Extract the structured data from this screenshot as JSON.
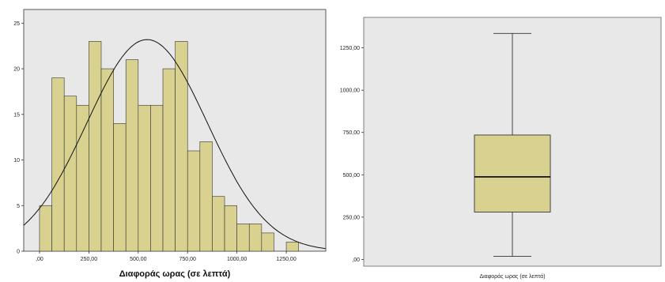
{
  "chart_data": [
    {
      "type": "bar",
      "subtype": "histogram",
      "xlabel": "Διαφοράς ωρας (σε λεπτά)",
      "x_tick_labels": [
        ",00",
        "250,00",
        "500,00",
        "750,00",
        "1000,00",
        "1250,00"
      ],
      "x_ticks": [
        0,
        250,
        500,
        750,
        1000,
        1250
      ],
      "y_tick_labels": [
        "0",
        "5",
        "10",
        "15",
        "20",
        "25"
      ],
      "y_ticks": [
        0,
        5,
        10,
        15,
        20,
        25
      ],
      "xlim": [
        -80,
        1450
      ],
      "ylim": [
        0,
        26.5
      ],
      "bin_width": 62.5,
      "bin_start": 0,
      "values": [
        5,
        19,
        17,
        16,
        23,
        20,
        14,
        21,
        16,
        16,
        20,
        23,
        11,
        12,
        6,
        5,
        3,
        3,
        2,
        0,
        1
      ],
      "normal_curve": {
        "mean": 545,
        "sd": 305,
        "peak": 23.2
      },
      "bar_color": "#d9d18f",
      "plot_background": "#e8e8e8"
    },
    {
      "type": "boxplot",
      "xlabel": "Διαφοράς ωρας (σε λεπτά)",
      "y_tick_labels": [
        ",00",
        "250,00",
        "500,00",
        "750,00",
        "1000,00",
        "1250,00"
      ],
      "y_ticks": [
        0,
        250,
        500,
        750,
        1000,
        1250
      ],
      "ylim": [
        -40,
        1430
      ],
      "min": 18,
      "q1": 280,
      "median": 488,
      "q3": 735,
      "max": 1335,
      "box_color": "#d9d18f",
      "plot_background": "#e8e8e8"
    }
  ]
}
